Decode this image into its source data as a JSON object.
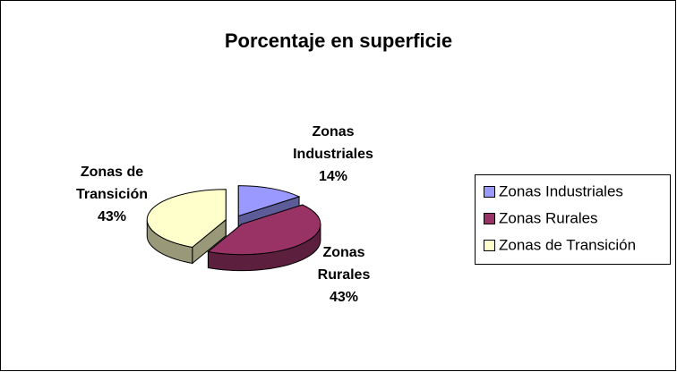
{
  "chart_data": {
    "type": "pie3d",
    "title": "Porcentaje en superficie",
    "categories": [
      "Zonas Industriales",
      "Zonas Rurales",
      "Zonas de Transición"
    ],
    "values": [
      14,
      43,
      43
    ],
    "value_labels": [
      "14%",
      "43%",
      "43%"
    ],
    "colors": [
      "#9999ff",
      "#993366",
      "#ffffcc"
    ],
    "legend": "right"
  }
}
